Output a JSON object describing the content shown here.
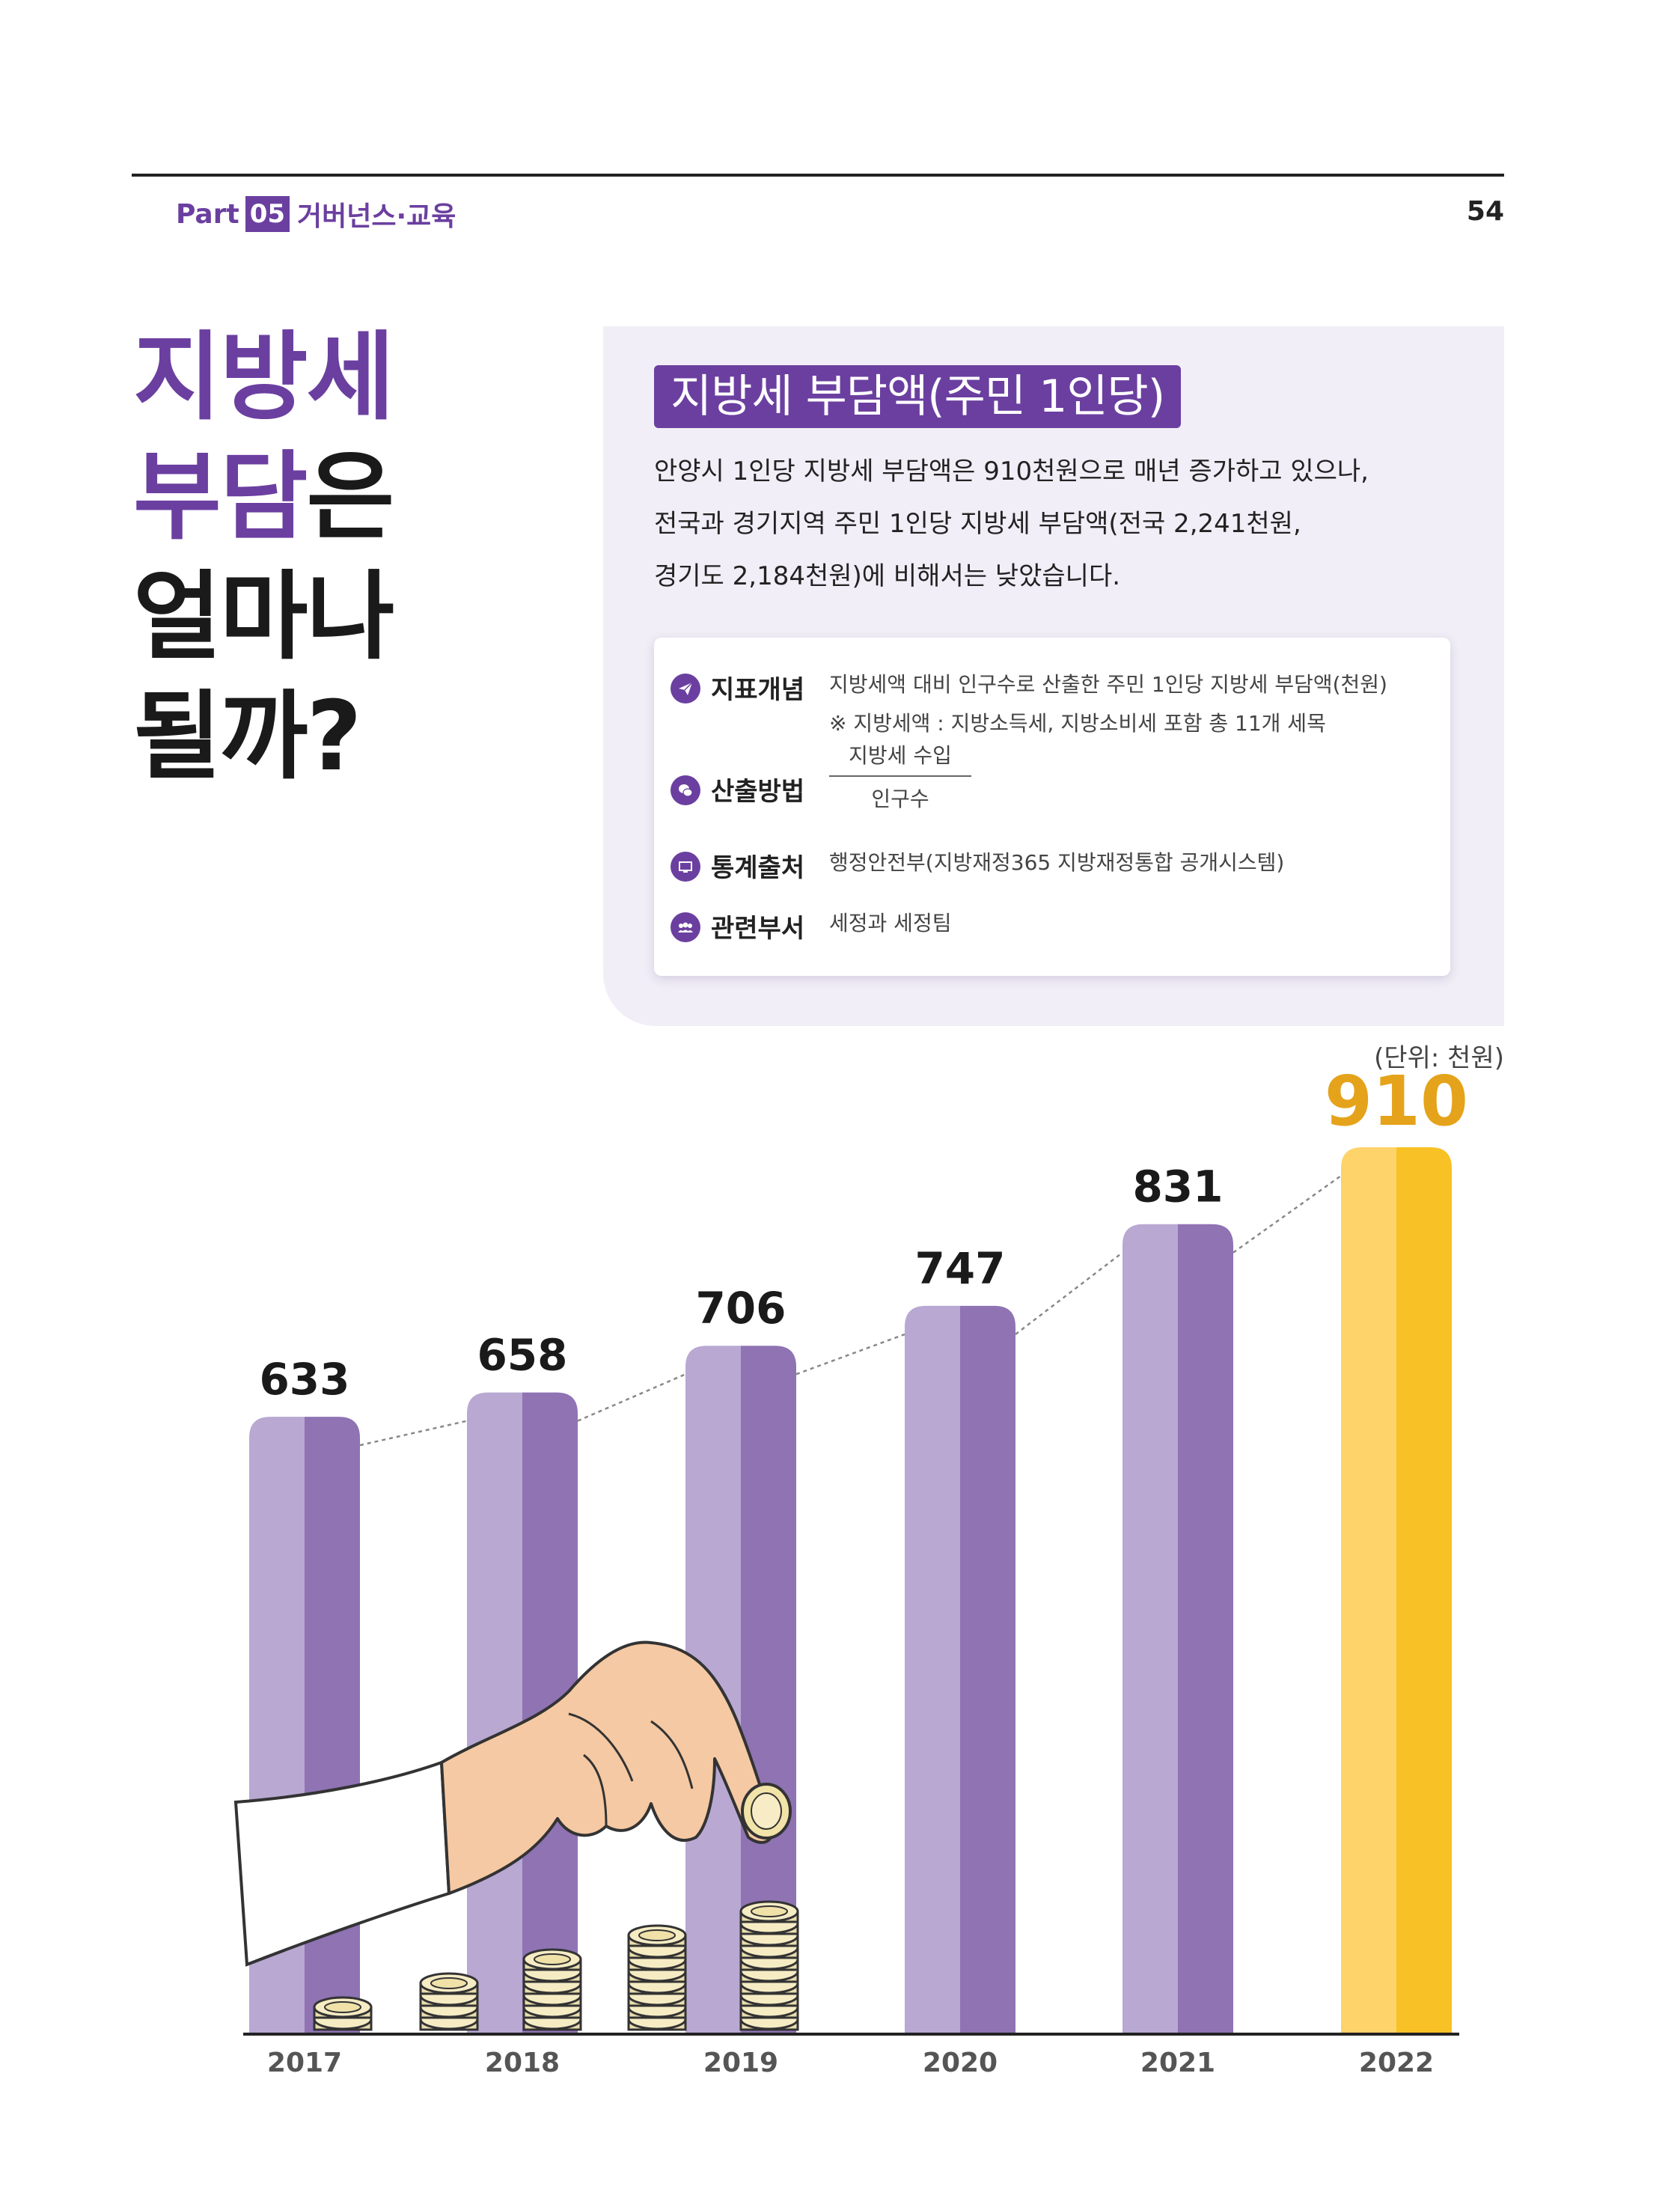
{
  "header": {
    "part_word": "Part",
    "part_number": "05",
    "part_title": "거버넌스·교육",
    "page_number": "54"
  },
  "big_title": {
    "line1": "지방세",
    "line2_purple": "부담",
    "line2_rest": "은",
    "line3": "얼마나",
    "line4": "될까?"
  },
  "info": {
    "heading": "지방세 부담액(주민 1인당)",
    "desc": [
      "안양시 1인당 지방세 부담액은 910천원으로 매년 증가하고 있으나,",
      "전국과 경기지역 주민 1인당 지방세 부담액(전국 2,241천원,",
      "경기도 2,184천원)에 비해서는 낮았습니다."
    ],
    "rows": {
      "concept": {
        "label": "지표개념",
        "value": "지방세액 대비 인구수로 산출한 주민 1인당 지방세 부담액(천원)",
        "note": "※ 지방세액 : 지방소득세, 지방소비세 포함 총 11개 세목"
      },
      "method": {
        "label": "산출방법",
        "numerator": "지방세 수입",
        "denominator": "인구수"
      },
      "source": {
        "label": "통계출처",
        "value": "행정안전부(지방재정365 지방재정통합 공개시스템)"
      },
      "dept": {
        "label": "관련부서",
        "value": "세정과 세정팀"
      }
    },
    "icons": [
      "paper-plane-icon",
      "chat-bubble-icon",
      "monitor-icon",
      "people-icon"
    ]
  },
  "unit_label": "(단위: 천원)",
  "chart_data": {
    "type": "bar",
    "title": "",
    "xlabel": "",
    "ylabel": "",
    "unit": "(단위: 천원)",
    "categories": [
      "2017",
      "2018",
      "2019",
      "2020",
      "2021",
      "2022"
    ],
    "values": [
      633,
      658,
      706,
      747,
      831,
      910
    ],
    "highlight_index": 5,
    "trend_line": true,
    "colors": {
      "bar_light": "#b8a8d2",
      "bar_dark": "#8f73b3",
      "highlight_light": "#fdd36a",
      "highlight_dark": "#f8c125",
      "highlight_label": "#e5a31b"
    }
  }
}
